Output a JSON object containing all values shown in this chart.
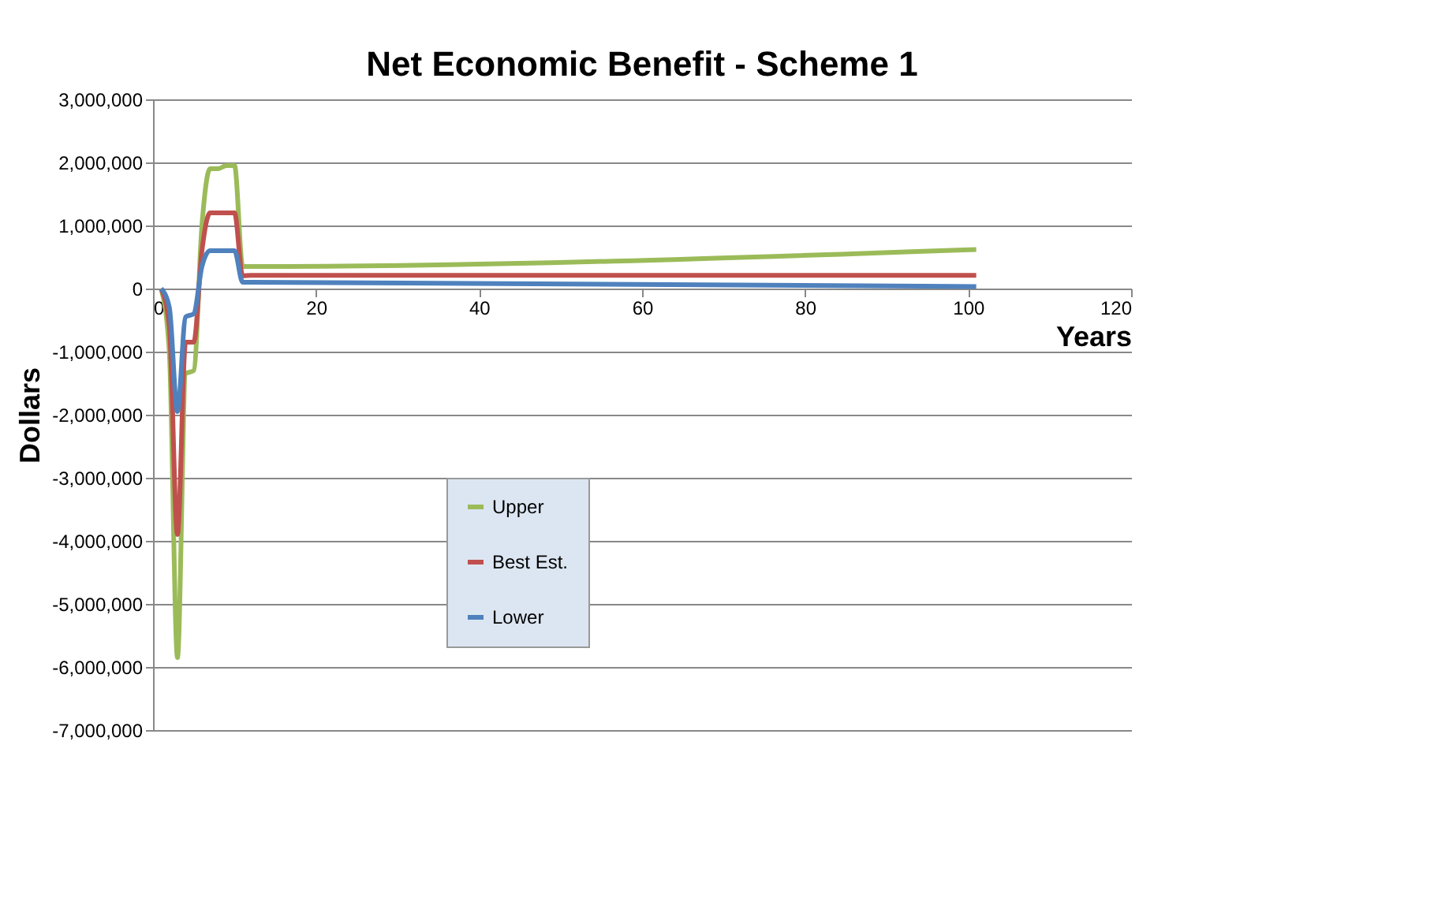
{
  "chart_data": {
    "type": "line",
    "title": "Net Economic Benefit - Scheme 1",
    "xlabel": "Years",
    "ylabel": "Dollars",
    "x": [
      1,
      2,
      3,
      4,
      5,
      6,
      7,
      8,
      9,
      10,
      11,
      12,
      101
    ],
    "series": [
      {
        "name": "Upper",
        "color": "#9bbb59",
        "values": [
          0,
          -1000000,
          -5850000,
          -1350000,
          -1300000,
          1000000,
          1900000,
          1900000,
          1950000,
          1950000,
          350000,
          350000,
          620000
        ]
      },
      {
        "name": "Best Est.",
        "color": "#c0504d",
        "values": [
          0,
          -600000,
          -3900000,
          -850000,
          -850000,
          600000,
          1200000,
          1200000,
          1200000,
          1200000,
          200000,
          210000,
          210000
        ]
      },
      {
        "name": "Lower",
        "color": "#4f81bd",
        "values": [
          0,
          -300000,
          -1950000,
          -450000,
          -400000,
          350000,
          600000,
          600000,
          600000,
          600000,
          100000,
          100000,
          30000
        ]
      }
    ],
    "xlim": [
      0,
      120
    ],
    "xticks": [
      0,
      20,
      40,
      60,
      80,
      100,
      120
    ],
    "ylim": [
      -7000000,
      3000000
    ],
    "yticks": [
      {
        "value": -7000000,
        "label": "-7,000,000"
      },
      {
        "value": -6000000,
        "label": "-6,000,000"
      },
      {
        "value": -5000000,
        "label": "-5,000,000"
      },
      {
        "value": -4000000,
        "label": "-4,000,000"
      },
      {
        "value": -3000000,
        "label": "-3,000,000"
      },
      {
        "value": -2000000,
        "label": "-2,000,000"
      },
      {
        "value": -1000000,
        "label": "-1,000,000"
      },
      0,
      {
        "value": 1000000,
        "label": "1,000,000"
      },
      {
        "value": 2000000,
        "label": "2,000,000"
      },
      {
        "value": 3000000,
        "label": "3,000,000"
      }
    ],
    "grid": "y",
    "legend": "bottom",
    "marker": "none",
    "line_style": "solid"
  }
}
